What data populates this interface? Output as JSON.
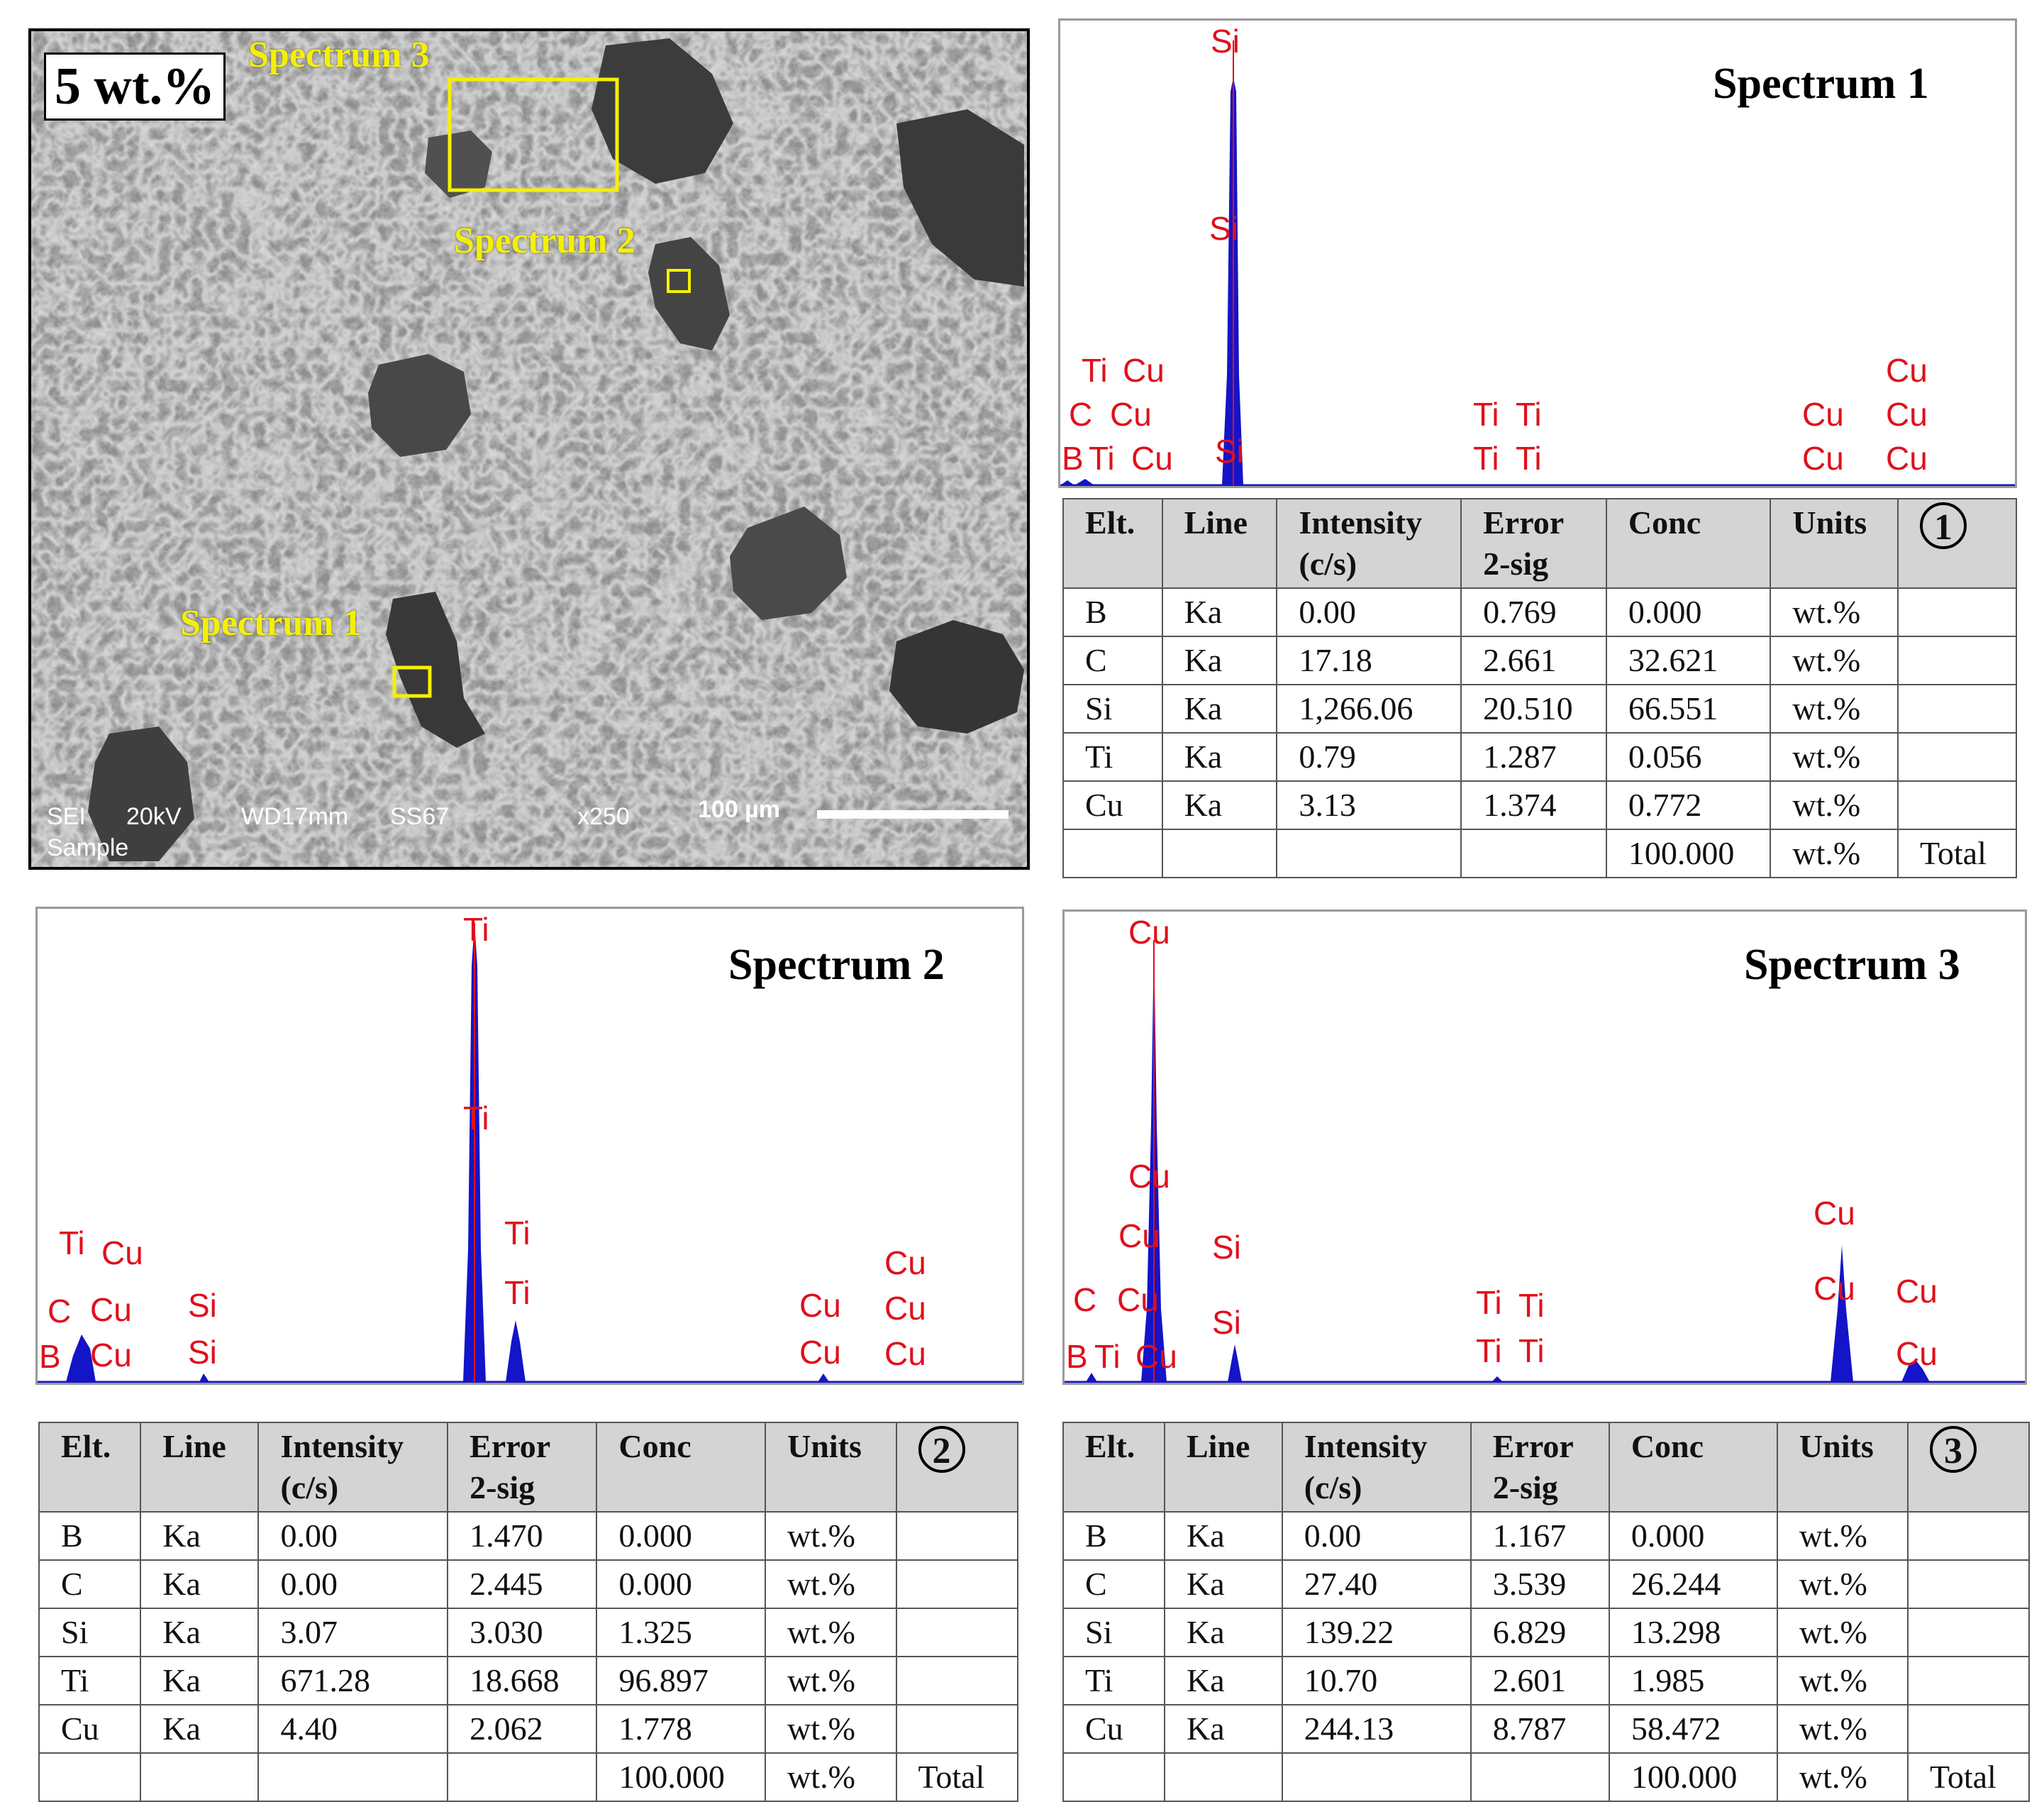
{
  "sem": {
    "sample_label": "5 wt.%",
    "regions": [
      {
        "label": "Spectrum 3"
      },
      {
        "label": "Spectrum 2"
      },
      {
        "label": "Spectrum 1"
      }
    ],
    "footer": {
      "mode": "SEI",
      "voltage": "20kV",
      "wd": "WD17mm",
      "ss": "SS67",
      "mag": "x250",
      "scale": "100 µm",
      "sample": "Sample"
    }
  },
  "spectra": [
    {
      "title": "Spectrum 1",
      "peak_labels": [
        "Si",
        "Si",
        "Si",
        "Ti",
        "Cu",
        "C",
        "Cu",
        "B",
        "Ti",
        "Cu",
        "Ti",
        "Ti",
        "Ti",
        "Ti",
        "Cu",
        "Cu",
        "Cu",
        "Cu",
        "Cu"
      ]
    },
    {
      "title": "Spectrum 2",
      "peak_labels": [
        "Ti",
        "Ti",
        "Ti",
        "Ti",
        "Ti",
        "Cu",
        "C",
        "Cu",
        "B",
        "Cu",
        "Si",
        "Si",
        "Cu",
        "Cu",
        "Cu",
        "Cu",
        "Cu"
      ]
    },
    {
      "title": "Spectrum 3",
      "peak_labels": [
        "Cu",
        "Cu",
        "Cu",
        "Si",
        "Si",
        "C",
        "Cu",
        "B",
        "Ti",
        "Cu",
        "Ti",
        "Ti",
        "Ti",
        "Ti",
        "Cu",
        "Cu",
        "Cu",
        "Cu"
      ]
    }
  ],
  "table_headers": {
    "elt": "Elt.",
    "line": "Line",
    "intensity": "Intensity (c/s)",
    "error": "Error 2-sig",
    "conc": "Conc",
    "units": "Units"
  },
  "tables": [
    {
      "badge": "1",
      "rows": [
        [
          "B",
          "Ka",
          "0.00",
          "0.769",
          "0.000",
          "wt.%",
          ""
        ],
        [
          "C",
          "Ka",
          "17.18",
          "2.661",
          "32.621",
          "wt.%",
          ""
        ],
        [
          "Si",
          "Ka",
          "1,266.06",
          "20.510",
          "66.551",
          "wt.%",
          ""
        ],
        [
          "Ti",
          "Ka",
          "0.79",
          "1.287",
          "0.056",
          "wt.%",
          ""
        ],
        [
          "Cu",
          "Ka",
          "3.13",
          "1.374",
          "0.772",
          "wt.%",
          ""
        ],
        [
          "",
          "",
          "",
          "",
          "100.000",
          "wt.%",
          "Total"
        ]
      ]
    },
    {
      "badge": "2",
      "rows": [
        [
          "B",
          "Ka",
          "0.00",
          "1.470",
          "0.000",
          "wt.%",
          ""
        ],
        [
          "C",
          "Ka",
          "0.00",
          "2.445",
          "0.000",
          "wt.%",
          ""
        ],
        [
          "Si",
          "Ka",
          "3.07",
          "3.030",
          "1.325",
          "wt.%",
          ""
        ],
        [
          "Ti",
          "Ka",
          "671.28",
          "18.668",
          "96.897",
          "wt.%",
          ""
        ],
        [
          "Cu",
          "Ka",
          "4.40",
          "2.062",
          "1.778",
          "wt.%",
          ""
        ],
        [
          "",
          "",
          "",
          "",
          "100.000",
          "wt.%",
          "Total"
        ]
      ]
    },
    {
      "badge": "3",
      "rows": [
        [
          "B",
          "Ka",
          "0.00",
          "1.167",
          "0.000",
          "wt.%",
          ""
        ],
        [
          "C",
          "Ka",
          "27.40",
          "3.539",
          "26.244",
          "wt.%",
          ""
        ],
        [
          "Si",
          "Ka",
          "139.22",
          "6.829",
          "13.298",
          "wt.%",
          ""
        ],
        [
          "Ti",
          "Ka",
          "10.70",
          "2.601",
          "1.985",
          "wt.%",
          ""
        ],
        [
          "Cu",
          "Ka",
          "244.13",
          "8.787",
          "58.472",
          "wt.%",
          ""
        ],
        [
          "",
          "",
          "",
          "",
          "100.000",
          "wt.%",
          "Total"
        ]
      ]
    }
  ],
  "colors": {
    "peak_fill": "#1414c8",
    "peak_marker": "#e0101b",
    "label_yellow": "#f5f000"
  }
}
